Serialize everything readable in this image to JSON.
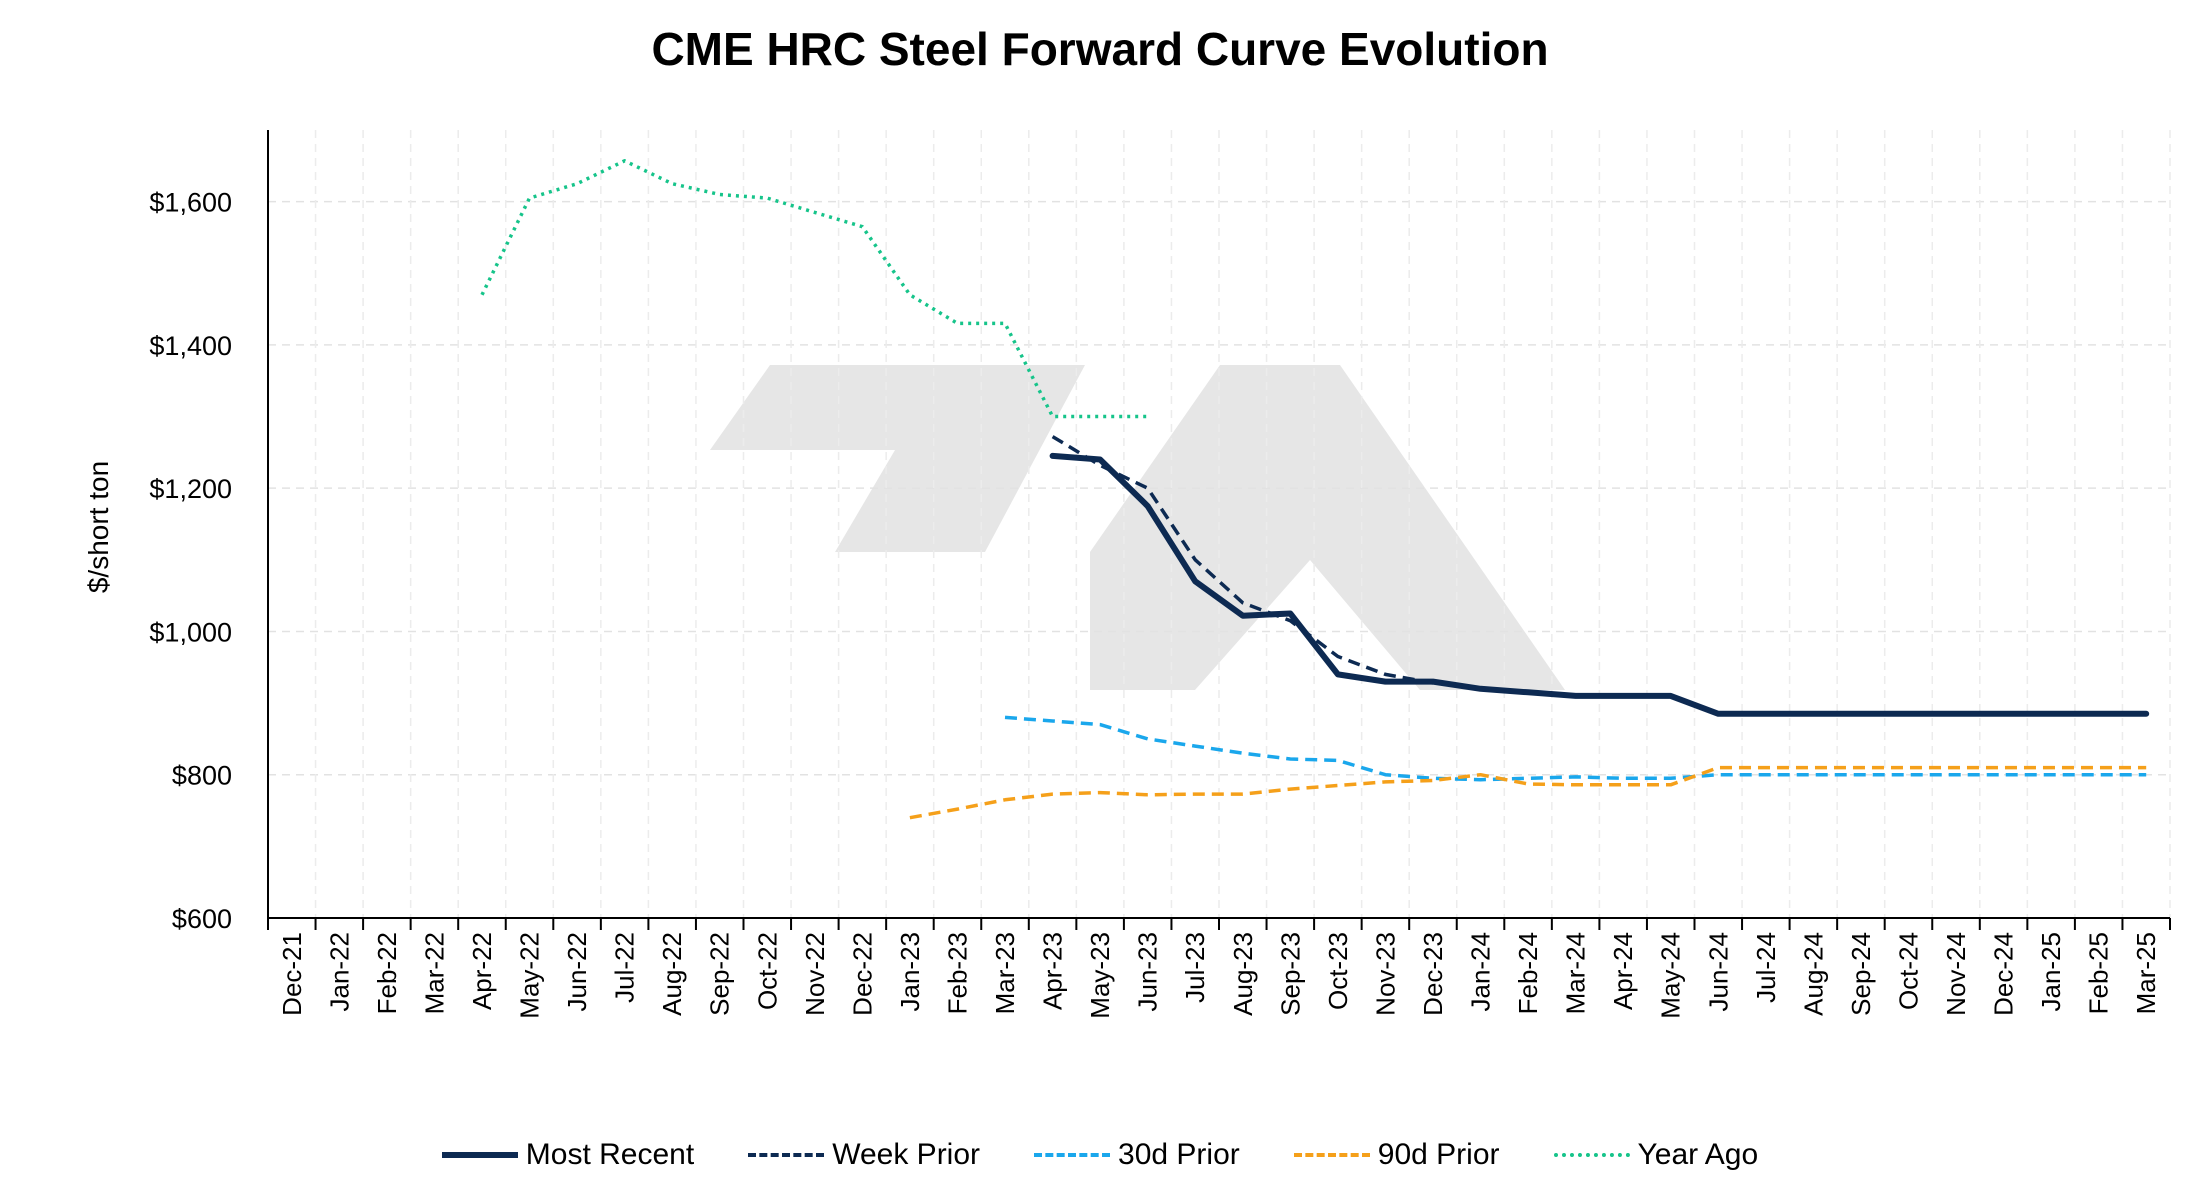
{
  "chart_data": {
    "type": "line",
    "title": "CME HRC Steel Forward Curve Evolution",
    "ylabel": "$/short ton",
    "xlabel": "",
    "ylim": [
      600,
      1700
    ],
    "yticks": [
      600,
      800,
      1000,
      1200,
      1400,
      1600
    ],
    "ytick_labels": [
      "$600",
      "$800",
      "$1,000",
      "$1,200",
      "$1,400",
      "$1,600"
    ],
    "grid": true,
    "legend_position": "bottom",
    "categories": [
      "Dec-21",
      "Jan-22",
      "Feb-22",
      "Mar-22",
      "Apr-22",
      "May-22",
      "Jun-22",
      "Jul-22",
      "Aug-22",
      "Sep-22",
      "Oct-22",
      "Nov-22",
      "Dec-22",
      "Jan-23",
      "Feb-23",
      "Mar-23",
      "Apr-23",
      "May-23",
      "Jun-23",
      "Jul-23",
      "Aug-23",
      "Sep-23",
      "Oct-23",
      "Nov-23",
      "Dec-23",
      "Jan-24",
      "Feb-24",
      "Mar-24",
      "Apr-24",
      "May-24",
      "Jun-24",
      "Jul-24",
      "Aug-24",
      "Sep-24",
      "Oct-24",
      "Nov-24",
      "Dec-24",
      "Jan-25",
      "Feb-25",
      "Mar-25"
    ],
    "series": [
      {
        "name": "Most Recent",
        "color": "#0d2a52",
        "style": "solid",
        "width": 6,
        "points": [
          [
            "Apr-23",
            1245
          ],
          [
            "May-23",
            1240
          ],
          [
            "Jun-23",
            1175
          ],
          [
            "Jul-23",
            1070
          ],
          [
            "Aug-23",
            1022
          ],
          [
            "Sep-23",
            1025
          ],
          [
            "Oct-23",
            940
          ],
          [
            "Nov-23",
            930
          ],
          [
            "Dec-23",
            930
          ],
          [
            "Jan-24",
            920
          ],
          [
            "Feb-24",
            915
          ],
          [
            "Mar-24",
            910
          ],
          [
            "Apr-24",
            910
          ],
          [
            "May-24",
            910
          ],
          [
            "Jun-24",
            885
          ],
          [
            "Jul-24",
            885
          ],
          [
            "Aug-24",
            885
          ],
          [
            "Sep-24",
            885
          ],
          [
            "Oct-24",
            885
          ],
          [
            "Nov-24",
            885
          ],
          [
            "Dec-24",
            885
          ],
          [
            "Jan-25",
            885
          ],
          [
            "Feb-25",
            885
          ],
          [
            "Mar-25",
            885
          ]
        ]
      },
      {
        "name": "Week Prior",
        "color": "#0d2a52",
        "style": "dashed",
        "width": 3.5,
        "points": [
          [
            "Apr-23",
            1272
          ],
          [
            "May-23",
            1232
          ],
          [
            "Jun-23",
            1200
          ],
          [
            "Jul-23",
            1100
          ],
          [
            "Aug-23",
            1040
          ],
          [
            "Sep-23",
            1015
          ],
          [
            "Oct-23",
            965
          ],
          [
            "Nov-23",
            940
          ],
          [
            "Dec-23",
            928
          ]
        ]
      },
      {
        "name": "30d Prior",
        "color": "#1aa7ec",
        "style": "dashed",
        "width": 3.5,
        "points": [
          [
            "Mar-23",
            880
          ],
          [
            "Apr-23",
            875
          ],
          [
            "May-23",
            870
          ],
          [
            "Jun-23",
            850
          ],
          [
            "Jul-23",
            840
          ],
          [
            "Aug-23",
            830
          ],
          [
            "Sep-23",
            822
          ],
          [
            "Oct-23",
            820
          ],
          [
            "Nov-23",
            800
          ],
          [
            "Dec-23",
            795
          ],
          [
            "Jan-24",
            793
          ],
          [
            "Feb-24",
            795
          ],
          [
            "Mar-24",
            797
          ],
          [
            "Apr-24",
            795
          ],
          [
            "May-24",
            795
          ],
          [
            "Jun-24",
            800
          ],
          [
            "Jul-24",
            800
          ],
          [
            "Aug-24",
            800
          ],
          [
            "Sep-24",
            800
          ],
          [
            "Oct-24",
            800
          ],
          [
            "Nov-24",
            800
          ],
          [
            "Dec-24",
            800
          ],
          [
            "Jan-25",
            800
          ],
          [
            "Feb-25",
            800
          ],
          [
            "Mar-25",
            800
          ]
        ]
      },
      {
        "name": "90d Prior",
        "color": "#f5a01a",
        "style": "dashed",
        "width": 3.5,
        "points": [
          [
            "Jan-23",
            740
          ],
          [
            "Feb-23",
            752
          ],
          [
            "Mar-23",
            765
          ],
          [
            "Apr-23",
            773
          ],
          [
            "May-23",
            775
          ],
          [
            "Jun-23",
            772
          ],
          [
            "Jul-23",
            773
          ],
          [
            "Aug-23",
            773
          ],
          [
            "Sep-23",
            780
          ],
          [
            "Oct-23",
            785
          ],
          [
            "Nov-23",
            790
          ],
          [
            "Dec-23",
            792
          ],
          [
            "Jan-24",
            800
          ],
          [
            "Feb-24",
            787
          ],
          [
            "Mar-24",
            786
          ],
          [
            "Apr-24",
            786
          ],
          [
            "May-24",
            786
          ],
          [
            "Jun-24",
            810
          ],
          [
            "Jul-24",
            810
          ],
          [
            "Aug-24",
            810
          ],
          [
            "Sep-24",
            810
          ],
          [
            "Oct-24",
            810
          ],
          [
            "Nov-24",
            810
          ],
          [
            "Dec-24",
            810
          ],
          [
            "Jan-25",
            810
          ],
          [
            "Feb-25",
            810
          ],
          [
            "Mar-25",
            810
          ]
        ]
      },
      {
        "name": "Year Ago",
        "color": "#16c48a",
        "style": "dotted",
        "width": 3.5,
        "points": [
          [
            "Apr-22",
            1470
          ],
          [
            "May-22",
            1605
          ],
          [
            "Jun-22",
            1625
          ],
          [
            "Jul-22",
            1657
          ],
          [
            "Aug-22",
            1625
          ],
          [
            "Sep-22",
            1610
          ],
          [
            "Oct-22",
            1605
          ],
          [
            "Nov-22",
            1585
          ],
          [
            "Dec-22",
            1565
          ],
          [
            "Jan-23",
            1470
          ],
          [
            "Feb-23",
            1430
          ],
          [
            "Mar-23",
            1430
          ],
          [
            "Apr-23",
            1300
          ],
          [
            "May-23",
            1300
          ],
          [
            "Jun-23",
            1300
          ]
        ]
      }
    ]
  }
}
